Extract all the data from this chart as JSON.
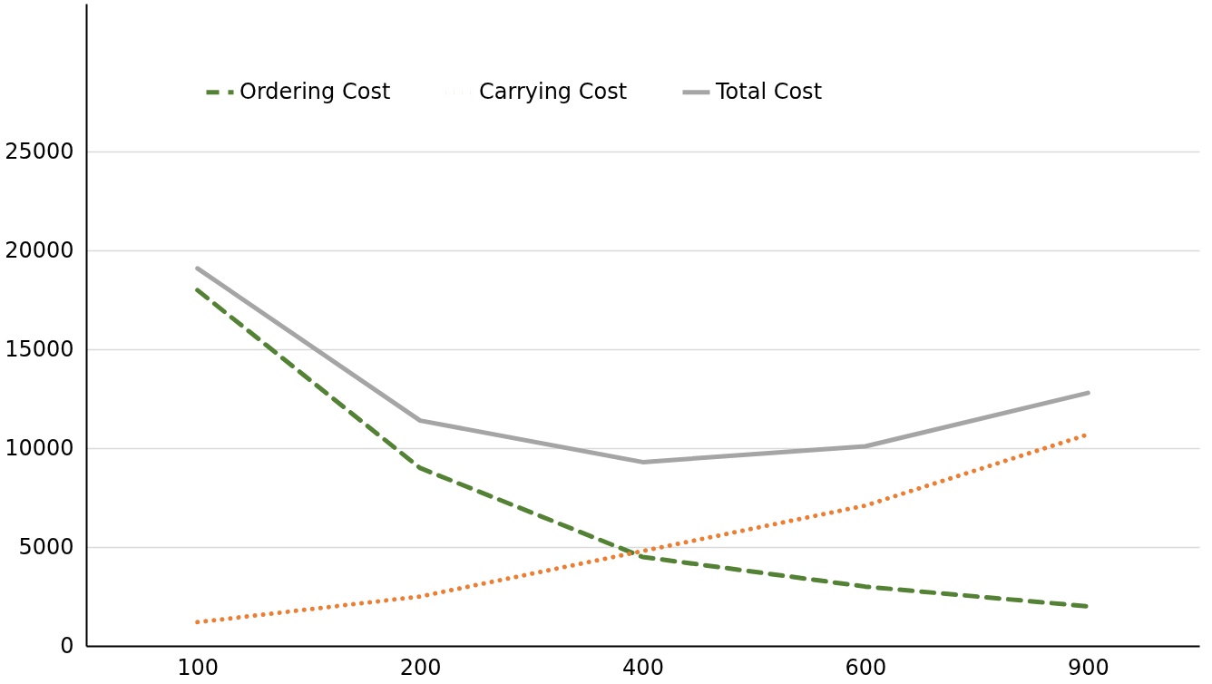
{
  "chart_data": {
    "type": "line",
    "categories": [
      "100",
      "200",
      "400",
      "600",
      "900"
    ],
    "series": [
      {
        "name": "Ordering Cost",
        "color": "#548235",
        "line_style": "dashed",
        "values": [
          18000,
          9000,
          4500,
          3000,
          2000
        ]
      },
      {
        "name": "Carrying Cost",
        "color": "#ed7d31",
        "line_style": "dotted",
        "values": [
          1200,
          2500,
          4800,
          7100,
          10700
        ]
      },
      {
        "name": "Total Cost",
        "color": "#a5a5a5",
        "line_style": "solid",
        "values": [
          19100,
          11400,
          9300,
          10100,
          12800
        ]
      }
    ],
    "ylim": [
      0,
      32500
    ],
    "yticks": [
      0,
      5000,
      10000,
      15000,
      20000,
      25000
    ],
    "grid": "y",
    "legend": "top",
    "marker": "none"
  }
}
